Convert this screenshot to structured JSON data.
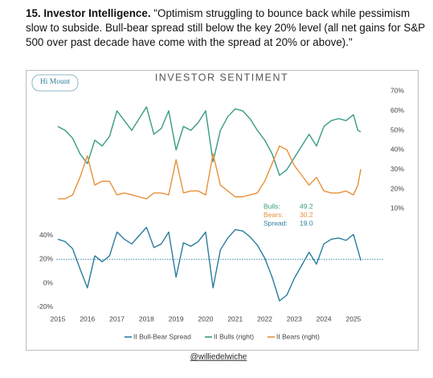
{
  "header": {
    "title": "15. Investor Intelligence.",
    "text": "\"Optimism struggling to bounce back while pessimism slow to subside. Bull-bear spread still below the key 20% level (all net gains for S&P 500 over past decade have come with the spread at 20% or above).\""
  },
  "logo": "Hi Mount",
  "handle": "@williedelwiche",
  "chart_data": {
    "type": "line",
    "title": "INVESTOR SENTIMENT",
    "x": [
      2015.0,
      2015.25,
      2015.5,
      2015.75,
      2016.0,
      2016.25,
      2016.5,
      2016.75,
      2017.0,
      2017.25,
      2017.5,
      2017.75,
      2018.0,
      2018.25,
      2018.5,
      2018.75,
      2019.0,
      2019.25,
      2019.5,
      2019.75,
      2020.0,
      2020.25,
      2020.5,
      2020.75,
      2021.0,
      2021.25,
      2021.5,
      2021.75,
      2022.0,
      2022.25,
      2022.5,
      2022.75,
      2023.0,
      2023.25,
      2023.5,
      2023.75,
      2024.0,
      2024.25,
      2024.5,
      2024.75,
      2025.0,
      2025.15,
      2025.25
    ],
    "xlim": [
      2014.5,
      2025.8
    ],
    "xticks": [
      2015,
      2016,
      2017,
      2018,
      2019,
      2020,
      2021,
      2022,
      2023,
      2024,
      2025
    ],
    "ylim": [
      -25,
      45
    ],
    "yticks": [
      {
        "value": -20,
        "label": "-20%"
      },
      {
        "value": 0,
        "label": "0%"
      },
      {
        "value": 20,
        "label": "20%"
      },
      {
        "value": 40,
        "label": "40%"
      }
    ],
    "y2lim": [
      5,
      72
    ],
    "y2ticks": [
      {
        "value": 10,
        "label": "10%"
      },
      {
        "value": 20,
        "label": "20%"
      },
      {
        "value": 30,
        "label": "30%"
      },
      {
        "value": 40,
        "label": "40%"
      },
      {
        "value": 50,
        "label": "50%"
      },
      {
        "value": 60,
        "label": "60%"
      },
      {
        "value": 70,
        "label": "70%"
      }
    ],
    "reference_line": {
      "value": 20,
      "color": "#5b9fc4"
    },
    "series": [
      {
        "name": "II Bull-Bear Spread",
        "color": "#2a7d9c",
        "values": [
          37,
          35,
          29,
          12,
          -4,
          23,
          18,
          23,
          43,
          37,
          33,
          40,
          47,
          30,
          33,
          43,
          5,
          34,
          31,
          35,
          43,
          -4,
          28,
          38,
          45,
          44,
          39,
          32,
          21,
          5,
          -15,
          -10,
          4,
          15,
          26,
          16,
          33,
          37,
          38,
          36,
          41,
          28,
          19
        ]
      },
      {
        "name": "II Bulls (right)",
        "color": "#3a9a85",
        "axis": "y2",
        "values": [
          52,
          50,
          46,
          38,
          33,
          45,
          42,
          47,
          60,
          55,
          50,
          56,
          62,
          48,
          51,
          60,
          40,
          52,
          50,
          54,
          60,
          34,
          50,
          57,
          61,
          60,
          56,
          50,
          45,
          38,
          27,
          30,
          36,
          42,
          48,
          42,
          52,
          55,
          56,
          55,
          58,
          50,
          49.2
        ]
      },
      {
        "name": "II Bears (right)",
        "color": "#e8903a",
        "axis": "y2",
        "values": [
          15,
          15,
          17,
          26,
          37,
          22,
          24,
          24,
          17,
          18,
          17,
          16,
          15,
          18,
          18,
          17,
          35,
          18,
          19,
          19,
          17,
          38,
          22,
          19,
          16,
          16,
          17,
          18,
          24,
          33,
          42,
          40,
          32,
          27,
          22,
          26,
          19,
          18,
          18,
          19,
          17,
          22,
          30.2
        ]
      }
    ],
    "annotations": [
      {
        "label": "Bulls:",
        "value": "49.2",
        "color": "#3a9a85"
      },
      {
        "label": "Bears:",
        "value": "30.2",
        "color": "#e8903a"
      },
      {
        "label": "Spread:",
        "value": "19.0",
        "color": "#2a7d9c"
      }
    ]
  }
}
